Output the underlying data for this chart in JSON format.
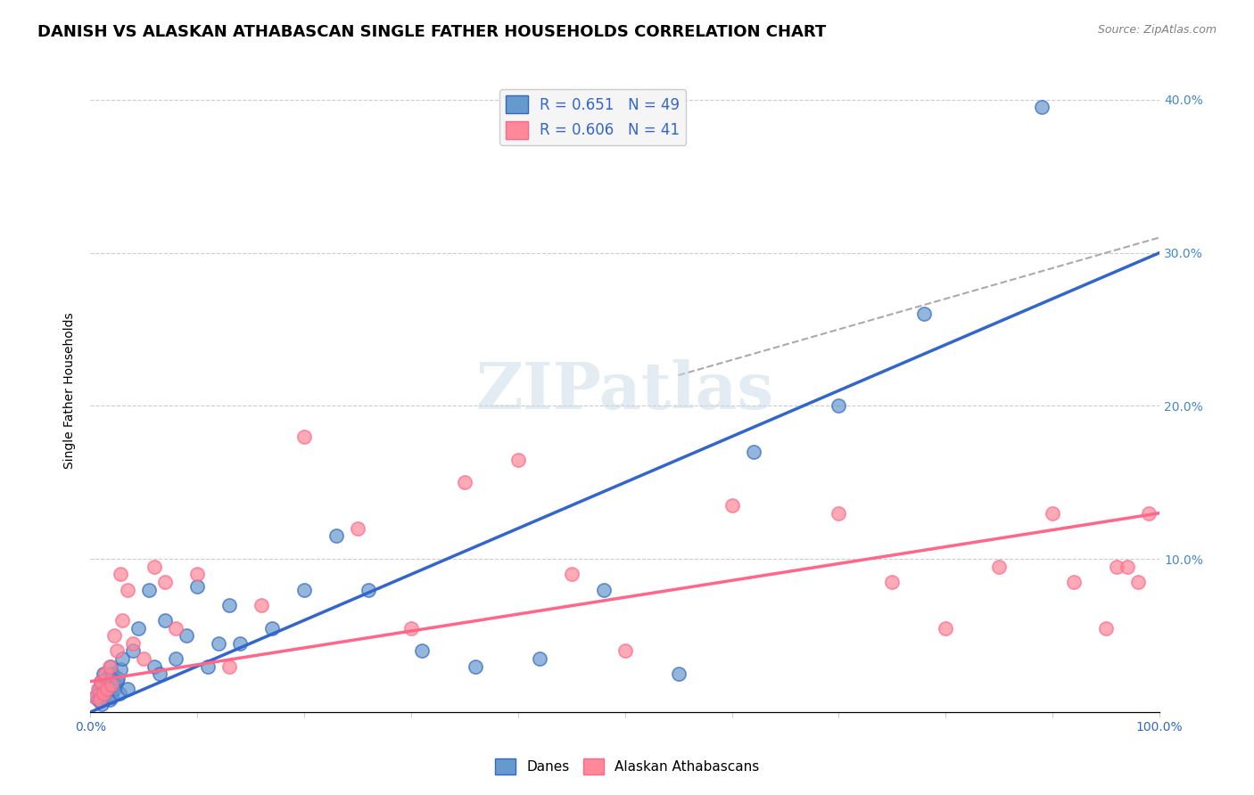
{
  "title": "DANISH VS ALASKAN ATHABASCAN SINGLE FATHER HOUSEHOLDS CORRELATION CHART",
  "source": "Source: ZipAtlas.com",
  "ylabel": "Single Father Households",
  "xlabel": "",
  "xlim": [
    0,
    1.0
  ],
  "ylim": [
    0,
    0.42
  ],
  "x_ticks": [
    0.0,
    0.1,
    0.2,
    0.3,
    0.4,
    0.5,
    0.6,
    0.7,
    0.8,
    0.9,
    1.0
  ],
  "x_tick_labels": [
    "0.0%",
    "",
    "",
    "",
    "",
    "",
    "",
    "",
    "",
    "",
    "100.0%"
  ],
  "y_ticks": [
    0.0,
    0.1,
    0.2,
    0.3,
    0.4
  ],
  "y_tick_labels": [
    "",
    "10.0%",
    "20.0%",
    "30.0%",
    "40.0%"
  ],
  "blue_R": "0.651",
  "blue_N": "49",
  "pink_R": "0.606",
  "pink_N": "41",
  "blue_color": "#6699CC",
  "pink_color": "#FF8899",
  "blue_line_color": "#3366CC",
  "pink_line_color": "#FF6688",
  "watermark": "ZIPatlas",
  "blue_scatter_x": [
    0.005,
    0.007,
    0.008,
    0.009,
    0.01,
    0.011,
    0.012,
    0.013,
    0.015,
    0.016,
    0.017,
    0.018,
    0.019,
    0.02,
    0.021,
    0.022,
    0.023,
    0.025,
    0.026,
    0.027,
    0.028,
    0.03,
    0.035,
    0.04,
    0.045,
    0.055,
    0.06,
    0.065,
    0.07,
    0.08,
    0.09,
    0.1,
    0.11,
    0.12,
    0.13,
    0.14,
    0.17,
    0.2,
    0.23,
    0.26,
    0.31,
    0.36,
    0.42,
    0.48,
    0.55,
    0.62,
    0.7,
    0.78,
    0.89
  ],
  "blue_scatter_y": [
    0.01,
    0.008,
    0.015,
    0.012,
    0.02,
    0.005,
    0.025,
    0.01,
    0.018,
    0.022,
    0.015,
    0.008,
    0.03,
    0.01,
    0.025,
    0.015,
    0.018,
    0.02,
    0.022,
    0.012,
    0.028,
    0.035,
    0.015,
    0.04,
    0.055,
    0.08,
    0.03,
    0.025,
    0.06,
    0.035,
    0.05,
    0.082,
    0.03,
    0.045,
    0.07,
    0.045,
    0.055,
    0.08,
    0.115,
    0.08,
    0.04,
    0.03,
    0.035,
    0.08,
    0.025,
    0.17,
    0.2,
    0.26,
    0.395
  ],
  "pink_scatter_x": [
    0.005,
    0.007,
    0.009,
    0.01,
    0.012,
    0.014,
    0.016,
    0.018,
    0.02,
    0.022,
    0.025,
    0.028,
    0.03,
    0.035,
    0.04,
    0.05,
    0.06,
    0.07,
    0.08,
    0.1,
    0.13,
    0.16,
    0.2,
    0.25,
    0.3,
    0.35,
    0.4,
    0.45,
    0.5,
    0.6,
    0.7,
    0.75,
    0.8,
    0.85,
    0.9,
    0.92,
    0.95,
    0.96,
    0.97,
    0.98,
    0.99
  ],
  "pink_scatter_y": [
    0.01,
    0.015,
    0.008,
    0.02,
    0.012,
    0.025,
    0.015,
    0.03,
    0.018,
    0.05,
    0.04,
    0.09,
    0.06,
    0.08,
    0.045,
    0.035,
    0.095,
    0.085,
    0.055,
    0.09,
    0.03,
    0.07,
    0.18,
    0.12,
    0.055,
    0.15,
    0.165,
    0.09,
    0.04,
    0.135,
    0.13,
    0.085,
    0.055,
    0.095,
    0.13,
    0.085,
    0.055,
    0.095,
    0.095,
    0.085,
    0.13
  ],
  "blue_line_x": [
    0.0,
    1.0
  ],
  "blue_line_y": [
    0.0,
    0.3
  ],
  "pink_line_x": [
    0.0,
    1.0
  ],
  "pink_line_y": [
    0.02,
    0.13
  ],
  "dashed_line_x": [
    0.55,
    1.0
  ],
  "dashed_line_y": [
    0.22,
    0.31
  ],
  "legend_box_color": "#f5f5f5",
  "grid_color": "#cccccc",
  "background_color": "#ffffff",
  "title_fontsize": 13,
  "axis_label_fontsize": 10,
  "tick_fontsize": 10,
  "right_tick_color": "#4488CC"
}
